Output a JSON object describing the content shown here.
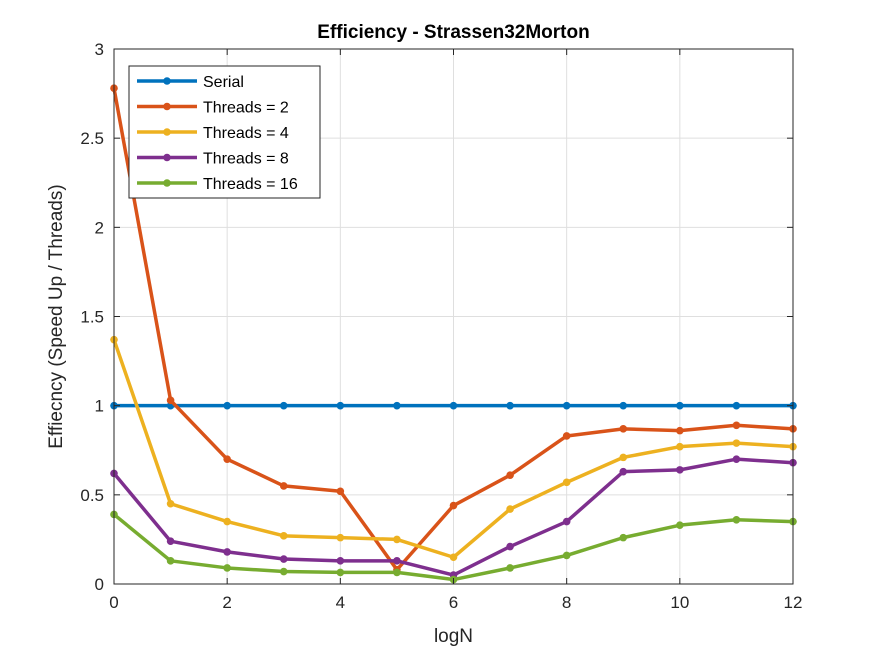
{
  "chart_data": {
    "type": "line",
    "title": "Efficiency - Strassen32Morton",
    "xlabel": "logN",
    "ylabel": "Effiecncy (Speed Up / Threads)",
    "xlim": [
      0,
      12
    ],
    "ylim": [
      0,
      3
    ],
    "x_ticks": [
      "0",
      "2",
      "4",
      "6",
      "8",
      "10",
      "12"
    ],
    "y_ticks": [
      "0",
      "0.5",
      "1",
      "1.5",
      "2",
      "2.5",
      "3"
    ],
    "grid": true,
    "legend_position": "top-left",
    "x": [
      0,
      1,
      2,
      3,
      4,
      5,
      6,
      7,
      8,
      9,
      10,
      11,
      12
    ],
    "series": [
      {
        "name": "Serial",
        "color": "#0072BD",
        "values": [
          1,
          1,
          1,
          1,
          1,
          1,
          1,
          1,
          1,
          1,
          1,
          1,
          1
        ]
      },
      {
        "name": "Threads = 2",
        "color": "#D95319",
        "values": [
          2.78,
          1.03,
          0.7,
          0.55,
          0.52,
          0.08,
          0.44,
          0.61,
          0.83,
          0.87,
          0.86,
          0.89,
          0.87
        ]
      },
      {
        "name": "Threads = 4",
        "color": "#EDB120",
        "values": [
          1.37,
          0.45,
          0.35,
          0.27,
          0.26,
          0.25,
          0.15,
          0.42,
          0.57,
          0.71,
          0.77,
          0.79,
          0.77
        ]
      },
      {
        "name": "Threads = 8",
        "color": "#7E2F8E",
        "values": [
          0.62,
          0.24,
          0.18,
          0.14,
          0.13,
          0.13,
          0.05,
          0.21,
          0.35,
          0.63,
          0.64,
          0.7,
          0.68
        ]
      },
      {
        "name": "Threads = 16",
        "color": "#77AC30",
        "values": [
          0.39,
          0.13,
          0.09,
          0.07,
          0.065,
          0.065,
          0.025,
          0.09,
          0.16,
          0.26,
          0.33,
          0.36,
          0.35
        ]
      }
    ]
  }
}
